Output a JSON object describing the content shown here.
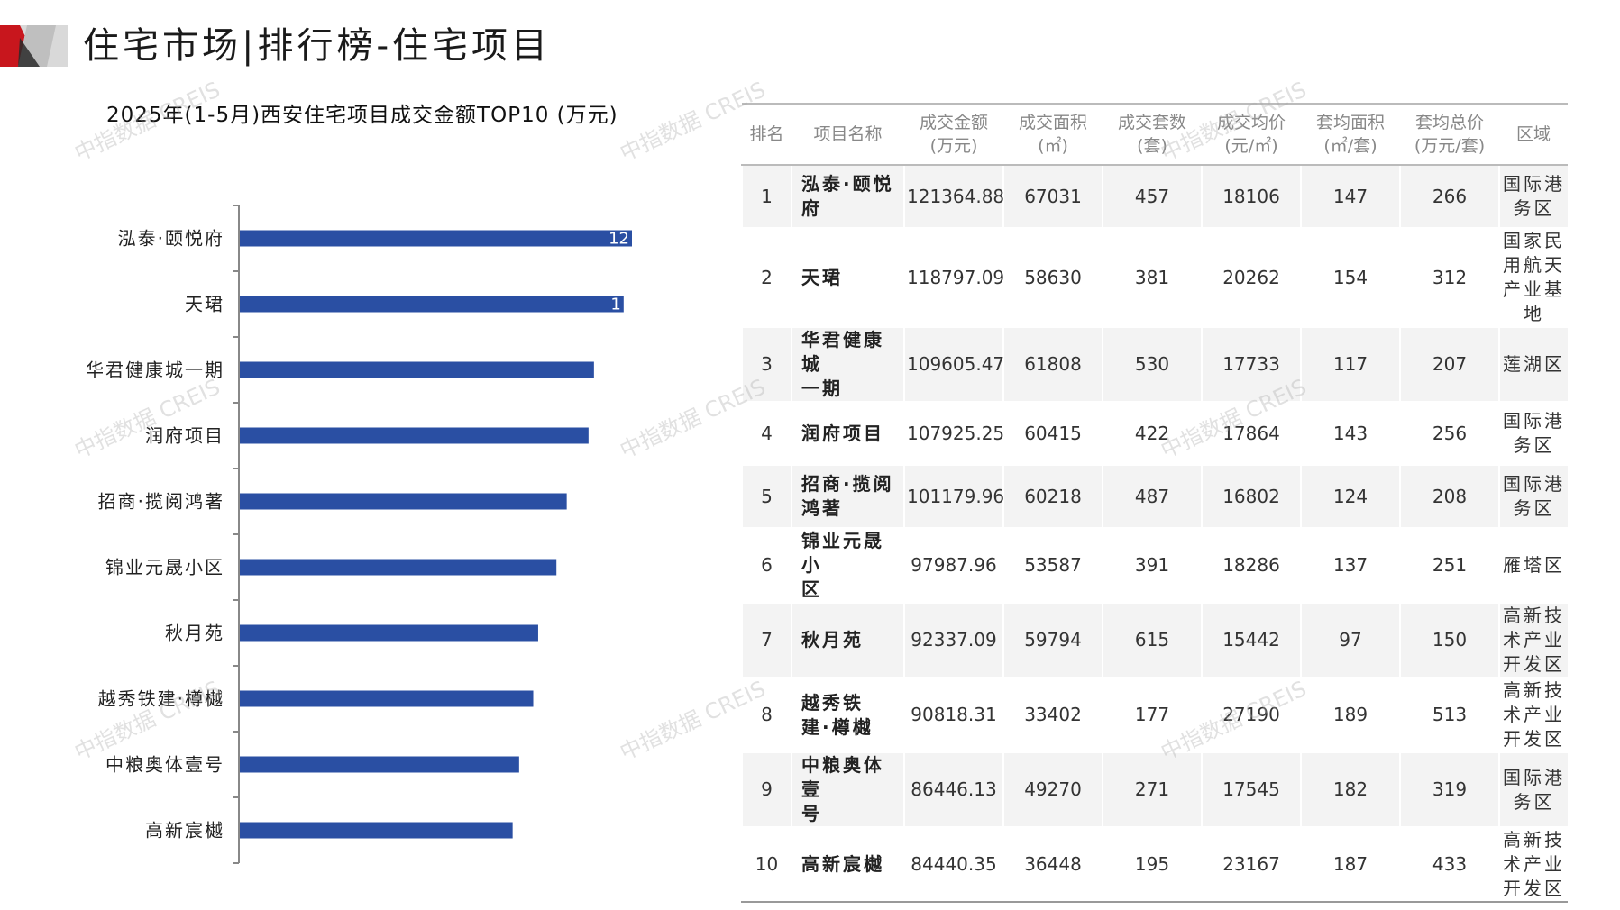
{
  "header": {
    "title": "住宅市场|排行榜-住宅项目"
  },
  "brand": {
    "accent": "#c8161d",
    "bar_color": "#2a4fa3"
  },
  "watermark_text": "中指数据 CREIS",
  "chart_data": {
    "type": "bar",
    "orientation": "horizontal",
    "title": "2025年(1-5月)西安住宅项目成交金额TOP10 (万元)",
    "categories": [
      "泓泰·颐悦府",
      "天珺",
      "华君健康城一期",
      "润府项目",
      "招商·揽阅鸿著",
      "锦业元晟小区",
      "秋月苑",
      "越秀铁建·樽樾",
      "中粮奥体壹号",
      "高新宸樾"
    ],
    "values": [
      121364.88,
      118797.09,
      109605.47,
      107925.25,
      101179.96,
      97987.96,
      92337.09,
      90818.31,
      86446.13,
      84440.35
    ],
    "visible_value_labels": [
      "12",
      "1"
    ],
    "grid": false,
    "legend": "none"
  },
  "table": {
    "headers": [
      {
        "line1": "排名",
        "line2": ""
      },
      {
        "line1": "项目名称",
        "line2": ""
      },
      {
        "line1": "成交金额",
        "line2": "(万元)"
      },
      {
        "line1": "成交面积",
        "line2": "(㎡)"
      },
      {
        "line1": "成交套数",
        "line2": "(套)"
      },
      {
        "line1": "成交均价",
        "line2": "(元/㎡)"
      },
      {
        "line1": "套均面积",
        "line2": "(㎡/套)"
      },
      {
        "line1": "套均总价",
        "line2": "(万元/套)"
      },
      {
        "line1": "区域",
        "line2": ""
      }
    ],
    "rows": [
      {
        "rank": "1",
        "name": [
          "泓泰·颐悦",
          "府"
        ],
        "amount": "121364.88",
        "area": "67031",
        "units": "457",
        "avg_price": "18106",
        "avg_area": "147",
        "avg_total": "266",
        "district": [
          "国际港",
          "务区"
        ]
      },
      {
        "rank": "2",
        "name": [
          "天珺"
        ],
        "amount": "118797.09",
        "area": "58630",
        "units": "381",
        "avg_price": "20262",
        "avg_area": "154",
        "avg_total": "312",
        "district": [
          "国家民",
          "用航天",
          "产业基",
          "地"
        ]
      },
      {
        "rank": "3",
        "name": [
          "华君健康城",
          "一期"
        ],
        "amount": "109605.47",
        "area": "61808",
        "units": "530",
        "avg_price": "17733",
        "avg_area": "117",
        "avg_total": "207",
        "district": [
          "莲湖区"
        ]
      },
      {
        "rank": "4",
        "name": [
          "润府项目"
        ],
        "amount": "107925.25",
        "area": "60415",
        "units": "422",
        "avg_price": "17864",
        "avg_area": "143",
        "avg_total": "256",
        "district": [
          "国际港",
          "务区"
        ]
      },
      {
        "rank": "5",
        "name": [
          "招商·揽阅",
          "鸿著"
        ],
        "amount": "101179.96",
        "area": "60218",
        "units": "487",
        "avg_price": "16802",
        "avg_area": "124",
        "avg_total": "208",
        "district": [
          "国际港",
          "务区"
        ]
      },
      {
        "rank": "6",
        "name": [
          "锦业元晟小",
          "区"
        ],
        "amount": "97987.96",
        "area": "53587",
        "units": "391",
        "avg_price": "18286",
        "avg_area": "137",
        "avg_total": "251",
        "district": [
          "雁塔区"
        ]
      },
      {
        "rank": "7",
        "name": [
          "秋月苑"
        ],
        "amount": "92337.09",
        "area": "59794",
        "units": "615",
        "avg_price": "15442",
        "avg_area": "97",
        "avg_total": "150",
        "district": [
          "高新技",
          "术产业",
          "开发区"
        ]
      },
      {
        "rank": "8",
        "name": [
          "越秀铁",
          "建·樽樾"
        ],
        "amount": "90818.31",
        "area": "33402",
        "units": "177",
        "avg_price": "27190",
        "avg_area": "189",
        "avg_total": "513",
        "district": [
          "高新技",
          "术产业",
          "开发区"
        ]
      },
      {
        "rank": "9",
        "name": [
          "中粮奥体壹",
          "号"
        ],
        "amount": "86446.13",
        "area": "49270",
        "units": "271",
        "avg_price": "17545",
        "avg_area": "182",
        "avg_total": "319",
        "district": [
          "国际港",
          "务区"
        ]
      },
      {
        "rank": "10",
        "name": [
          "高新宸樾"
        ],
        "amount": "84440.35",
        "area": "36448",
        "units": "195",
        "avg_price": "23167",
        "avg_area": "187",
        "avg_total": "433",
        "district": [
          "高新技",
          "术产业",
          "开发区"
        ]
      }
    ]
  }
}
